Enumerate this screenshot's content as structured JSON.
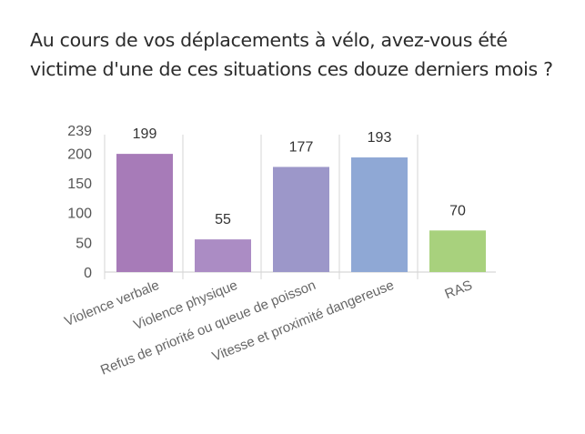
{
  "question": "Au cours de vos déplacements à vélo, avez-vous été victime d'une de ces situations ces douze derniers mois ?",
  "chart_data": {
    "type": "bar",
    "title": "Au cours de vos déplacements à vélo, avez-vous été victime d'une de ces situations ces douze derniers mois ?",
    "xlabel": "",
    "ylabel": "",
    "categories": [
      "Violence verbale",
      "Violence physique",
      "Refus de priorité ou queue de poisson",
      "Vitesse et proximité dangereuse",
      "RAS"
    ],
    "values": [
      199,
      55,
      177,
      193,
      70
    ],
    "colors": [
      "#a77bb8",
      "#ab8cc4",
      "#9c97c9",
      "#8fa8d5",
      "#a8d17d"
    ],
    "ylim": [
      0,
      239
    ],
    "yticks": [
      0,
      50,
      100,
      150,
      200,
      239
    ],
    "grid": "vertical category separators",
    "legend": "none",
    "data_labels": true
  }
}
